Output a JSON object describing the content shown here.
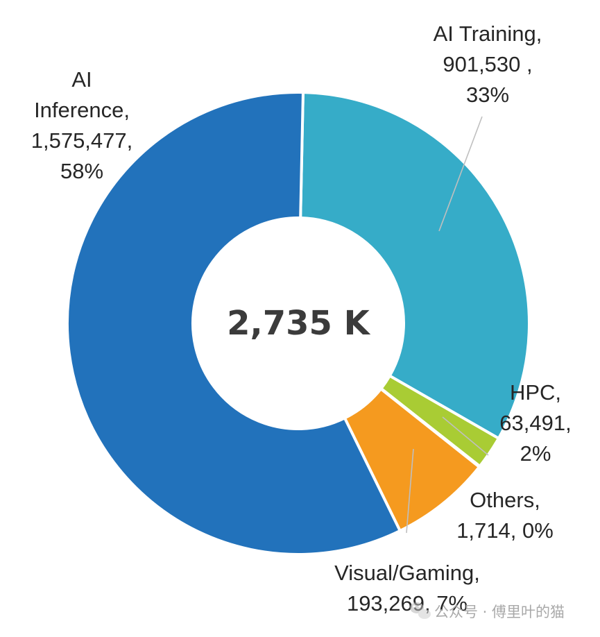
{
  "chart_data": {
    "type": "pie",
    "variant": "donut",
    "center_label": "2,735 K",
    "slices": [
      {
        "name": "AI Training",
        "value": 901530,
        "value_label": "901,530 ,",
        "percent_label": "33%",
        "color": "#36acc8"
      },
      {
        "name": "HPC",
        "value": 63491,
        "value_label": "63,491,",
        "percent_label": "2%",
        "color": "#a9cc34"
      },
      {
        "name": "Others",
        "value": 1714,
        "value_label": "1,714, 0%",
        "percent_label": "",
        "color": "#7f7f7f"
      },
      {
        "name": "Visual/Gaming",
        "value": 193269,
        "value_label": "193,269, 7%",
        "percent_label": "",
        "color": "#f59a1f"
      },
      {
        "name": "AI Inference",
        "value": 1575477,
        "value_label": "1,575,477,",
        "percent_label": "58%",
        "color": "#2272bb"
      }
    ],
    "labels": {
      "ai_training": [
        "AI Training,",
        "901,530 ,",
        "33%"
      ],
      "hpc": [
        "HPC,",
        "63,491,",
        "2%"
      ],
      "others": [
        "Others,",
        "1,714, 0%"
      ],
      "visual_gaming": [
        "Visual/Gaming,",
        "193,269, 7%"
      ],
      "ai_inference": [
        "AI",
        "Inference,",
        "1,575,477,",
        "58%"
      ]
    },
    "legend": "none",
    "grid": false
  },
  "watermark": {
    "text": "公众号 · 傅里叶的猫",
    "icon": "wechat-icon"
  }
}
